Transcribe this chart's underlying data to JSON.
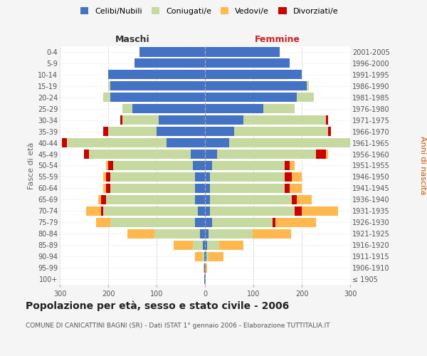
{
  "age_groups": [
    "100+",
    "95-99",
    "90-94",
    "85-89",
    "80-84",
    "75-79",
    "70-74",
    "65-69",
    "60-64",
    "55-59",
    "50-54",
    "45-49",
    "40-44",
    "35-39",
    "30-34",
    "25-29",
    "20-24",
    "15-19",
    "10-14",
    "5-9",
    "0-4"
  ],
  "birth_years": [
    "≤ 1905",
    "1906-1910",
    "1911-1915",
    "1916-1920",
    "1921-1925",
    "1926-1930",
    "1931-1935",
    "1936-1940",
    "1941-1945",
    "1946-1950",
    "1951-1955",
    "1956-1960",
    "1961-1965",
    "1966-1970",
    "1971-1975",
    "1976-1980",
    "1981-1985",
    "1986-1990",
    "1991-1995",
    "1996-2000",
    "2001-2005"
  ],
  "colors": {
    "celibi": "#4472C4",
    "coniugati": "#c5d9a0",
    "vedovi": "#FFB84D",
    "divorziati": "#CC0000"
  },
  "maschi": {
    "celibi": [
      1,
      1,
      1,
      5,
      10,
      20,
      15,
      20,
      20,
      20,
      25,
      30,
      80,
      100,
      95,
      150,
      195,
      195,
      200,
      145,
      135
    ],
    "coniugati": [
      0,
      0,
      5,
      20,
      95,
      175,
      195,
      185,
      175,
      175,
      165,
      210,
      205,
      100,
      75,
      20,
      15,
      5,
      0,
      0,
      0
    ],
    "vedovi": [
      0,
      2,
      15,
      40,
      55,
      30,
      30,
      5,
      5,
      5,
      5,
      0,
      0,
      0,
      0,
      0,
      0,
      0,
      0,
      0,
      0
    ],
    "divorziati": [
      0,
      0,
      0,
      0,
      0,
      0,
      5,
      10,
      10,
      10,
      10,
      10,
      10,
      10,
      5,
      0,
      0,
      0,
      0,
      0,
      0
    ]
  },
  "femmine": {
    "celibi": [
      1,
      1,
      3,
      5,
      8,
      15,
      10,
      10,
      10,
      10,
      15,
      25,
      50,
      60,
      80,
      120,
      190,
      210,
      200,
      175,
      155
    ],
    "coniugati": [
      0,
      0,
      5,
      25,
      90,
      125,
      175,
      170,
      155,
      155,
      150,
      205,
      255,
      195,
      170,
      65,
      35,
      5,
      0,
      0,
      0
    ],
    "vedovi": [
      0,
      3,
      30,
      50,
      80,
      85,
      75,
      30,
      25,
      20,
      10,
      5,
      5,
      0,
      0,
      0,
      0,
      0,
      0,
      0,
      0
    ],
    "divorziati": [
      0,
      0,
      0,
      0,
      0,
      5,
      15,
      10,
      10,
      15,
      10,
      20,
      20,
      5,
      5,
      0,
      0,
      0,
      0,
      0,
      0
    ]
  },
  "title": "Popolazione per età, sesso e stato civile - 2006",
  "subtitle": "COMUNE DI CANICATTINI BAGNI (SR) - Dati ISTAT 1° gennaio 2006 - Elaborazione TUTTITALIA.IT",
  "xlim": 300,
  "ylabel_left": "Fasce di età",
  "ylabel_right": "Anni di nascita",
  "xlabel_left": "Maschi",
  "xlabel_right": "Femmine",
  "bg_color": "#f5f5f5",
  "plot_bg": "#ffffff"
}
